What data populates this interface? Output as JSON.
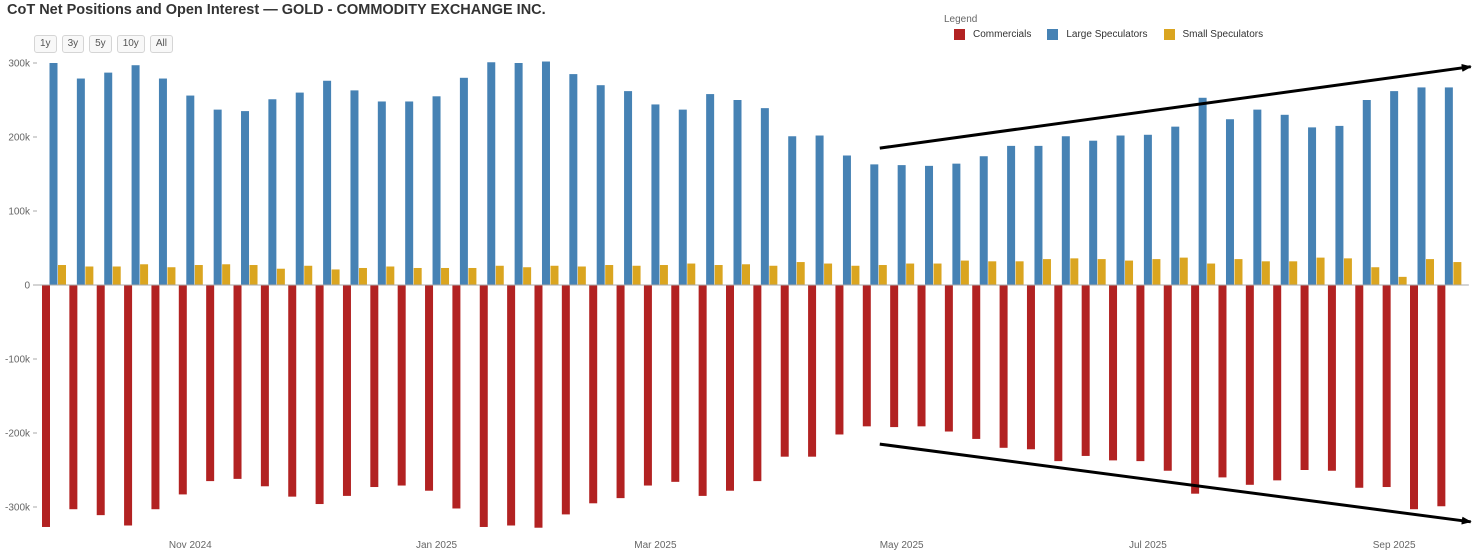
{
  "title": "CoT Net Positions and Open Interest — GOLD - COMMODITY EXCHANGE INC.",
  "range_buttons": [
    "1y",
    "3y",
    "5y",
    "10y",
    "All"
  ],
  "legend": {
    "title": "Legend",
    "items": [
      {
        "label": "Commercials",
        "color": "#b22222"
      },
      {
        "label": "Large Speculators",
        "color": "#4682b4"
      },
      {
        "label": "Small Speculators",
        "color": "#daa520"
      }
    ]
  },
  "chart_data": {
    "type": "bar",
    "title": "CoT Net Positions and Open Interest — GOLD - COMMODITY EXCHANGE INC.",
    "xlabel": "",
    "ylabel": "",
    "ylim": [
      -325000,
      325000
    ],
    "y_ticks": [
      {
        "value": 300000,
        "label": "300k"
      },
      {
        "value": 200000,
        "label": "200k"
      },
      {
        "value": 100000,
        "label": "100k"
      },
      {
        "value": 0,
        "label": "0"
      },
      {
        "value": -100000,
        "label": "-100k"
      },
      {
        "value": -200000,
        "label": "-200k"
      },
      {
        "value": -300000,
        "label": "-300k"
      }
    ],
    "x_ticks": [
      {
        "index": 5,
        "label": "Nov 2024"
      },
      {
        "index": 14,
        "label": "Jan 2025"
      },
      {
        "index": 22,
        "label": "Mar 2025"
      },
      {
        "index": 31,
        "label": "May 2025"
      },
      {
        "index": 40,
        "label": "Jul 2025"
      },
      {
        "index": 49,
        "label": "Sep 2025"
      }
    ],
    "series": [
      {
        "name": "Commercials",
        "color": "#b22222",
        "values": [
          -327000,
          -303000,
          -311000,
          -325000,
          -303000,
          -283000,
          -265000,
          -262000,
          -272000,
          -286000,
          -296000,
          -285000,
          -273000,
          -271000,
          -278000,
          -302000,
          -327000,
          -325000,
          -328000,
          -310000,
          -295000,
          -288000,
          -271000,
          -266000,
          -285000,
          -278000,
          -265000,
          -232000,
          -232000,
          -202000,
          -191000,
          -192000,
          -191000,
          -198000,
          -208000,
          -220000,
          -222000,
          -238000,
          -231000,
          -237000,
          -238000,
          -251000,
          -282000,
          -260000,
          -270000,
          -264000,
          -250000,
          -251000,
          -274000,
          -273000,
          -303000,
          -299000
        ]
      },
      {
        "name": "Large Speculators",
        "color": "#4682b4",
        "values": [
          300000,
          279000,
          287000,
          297000,
          279000,
          256000,
          237000,
          235000,
          251000,
          260000,
          276000,
          263000,
          248000,
          248000,
          255000,
          280000,
          301000,
          300000,
          302000,
          285000,
          270000,
          262000,
          244000,
          237000,
          258000,
          250000,
          239000,
          201000,
          202000,
          175000,
          163000,
          162000,
          161000,
          164000,
          174000,
          188000,
          188000,
          201000,
          195000,
          202000,
          203000,
          214000,
          253000,
          224000,
          237000,
          230000,
          213000,
          215000,
          250000,
          262000,
          267000,
          267000
        ]
      },
      {
        "name": "Small Speculators",
        "color": "#daa520",
        "values": [
          27000,
          25000,
          25000,
          28000,
          24000,
          27000,
          28000,
          27000,
          22000,
          26000,
          21000,
          23000,
          25000,
          23000,
          23000,
          23000,
          26000,
          24000,
          26000,
          25000,
          27000,
          26000,
          27000,
          29000,
          27000,
          28000,
          26000,
          31000,
          29000,
          26000,
          27000,
          29000,
          29000,
          33000,
          32000,
          32000,
          35000,
          36000,
          35000,
          33000,
          35000,
          37000,
          29000,
          35000,
          32000,
          32000,
          37000,
          36000,
          24000,
          11000,
          35000,
          31000
        ]
      }
    ],
    "annotations": [
      {
        "type": "arrow",
        "from": {
          "index": 30.2,
          "value": 185000
        },
        "to": {
          "index": 51.8,
          "value": 295000
        }
      },
      {
        "type": "arrow",
        "from": {
          "index": 30.2,
          "value": -215000
        },
        "to": {
          "index": 51.8,
          "value": -320000
        }
      }
    ],
    "grid": false,
    "legend_position": "top-right"
  }
}
